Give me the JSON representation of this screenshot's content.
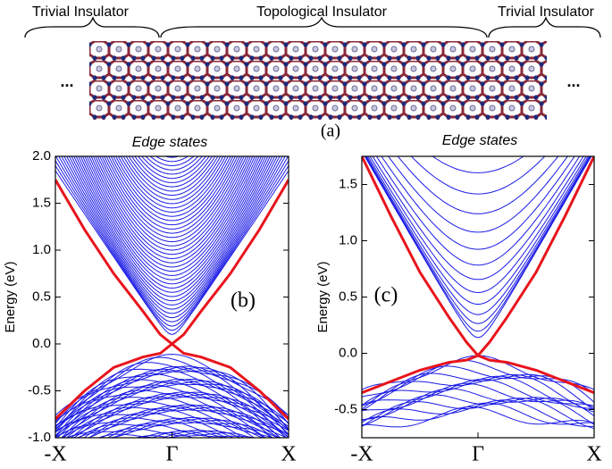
{
  "panel_a": {
    "labels": [
      "Trivial Insulator",
      "Topological Insulator",
      "Trivial Insulator"
    ],
    "ellipsis": [
      "...",
      "..."
    ],
    "caption": "(a)"
  },
  "chart_data": [
    {
      "type": "band",
      "title": "Edge states",
      "panel_label": "(b)",
      "ylabel": "Energy (eV)",
      "ylim": [
        -1,
        2
      ],
      "yticks": [
        {
          "value": -1,
          "label": "-1.0"
        },
        {
          "value": -0.5,
          "label": "-0.5"
        },
        {
          "value": 0,
          "label": "0.0"
        },
        {
          "value": 0.5,
          "label": "0.5"
        },
        {
          "value": 1,
          "label": "1.0"
        },
        {
          "value": 1.5,
          "label": "1.5"
        },
        {
          "value": 2,
          "label": "2.0"
        }
      ],
      "xlim": [
        -1,
        1
      ],
      "xticks": [
        {
          "value": -1,
          "label": "-X"
        },
        {
          "value": 0,
          "label": "Γ"
        },
        {
          "value": 1,
          "label": "X"
        }
      ],
      "x": [
        -1,
        -0.75,
        -0.5,
        -0.25,
        -0.1,
        0,
        0.1,
        0.25,
        0.5,
        0.75,
        1
      ],
      "series": [
        {
          "color": "#e8141c",
          "values": [
            1.75,
            1.22,
            0.75,
            0.35,
            0.1,
            0.0,
            -0.1,
            -0.14,
            -0.25,
            -0.5,
            -0.8
          ]
        },
        {
          "color": "#e8141c",
          "values": [
            -0.8,
            -0.5,
            -0.25,
            -0.14,
            -0.1,
            0.0,
            0.1,
            0.35,
            0.75,
            1.22,
            1.75
          ]
        }
      ]
    },
    {
      "type": "band",
      "title": "Edge states",
      "panel_label": "(c)",
      "ylabel": "Energy (eV)",
      "ylim": [
        -0.75,
        1.75
      ],
      "yticks": [
        {
          "value": -0.5,
          "label": "-0.5"
        },
        {
          "value": 0,
          "label": "0.0"
        },
        {
          "value": 0.5,
          "label": "0.5"
        },
        {
          "value": 1,
          "label": "1.0"
        },
        {
          "value": 1.5,
          "label": "1.5"
        }
      ],
      "xlim": [
        -1,
        1
      ],
      "xticks": [
        {
          "value": -1,
          "label": "-X"
        },
        {
          "value": 0,
          "label": "Γ"
        },
        {
          "value": 1,
          "label": "X"
        }
      ],
      "x": [
        -1,
        -0.75,
        -0.5,
        -0.25,
        -0.1,
        0,
        0.1,
        0.25,
        0.5,
        0.75,
        1
      ],
      "series": [
        {
          "color": "#e8141c",
          "values": [
            1.75,
            1.22,
            0.72,
            0.32,
            0.1,
            -0.02,
            -0.06,
            -0.08,
            -0.15,
            -0.25,
            -0.35
          ]
        },
        {
          "color": "#e8141c",
          "values": [
            -0.35,
            -0.25,
            -0.15,
            -0.08,
            -0.06,
            -0.02,
            0.1,
            0.32,
            0.72,
            1.22,
            1.75
          ]
        }
      ]
    }
  ]
}
